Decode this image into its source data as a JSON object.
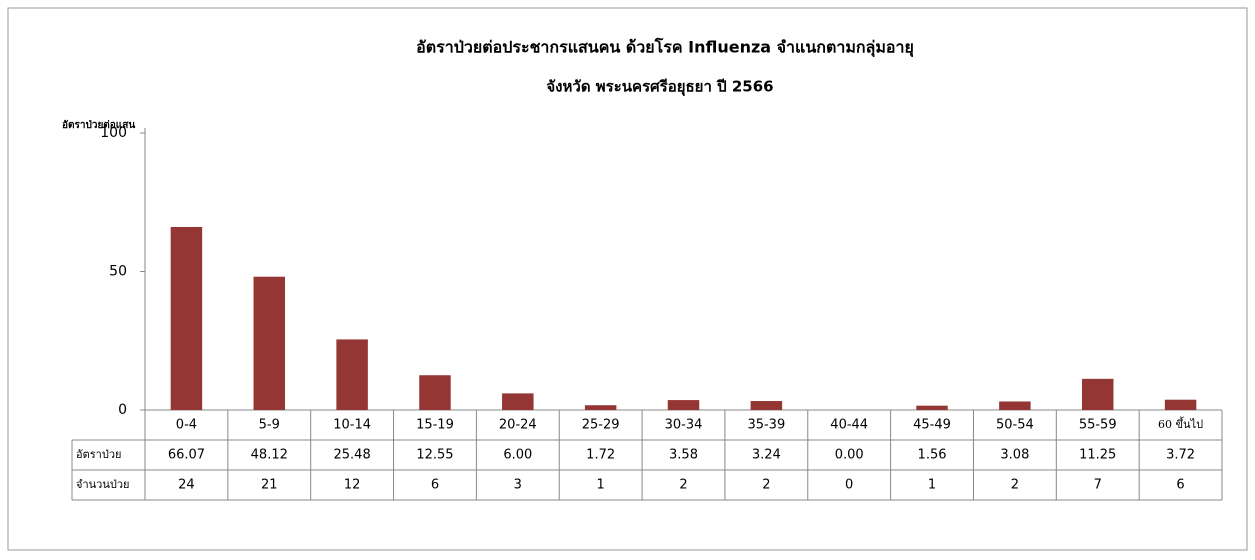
{
  "chart_data": {
    "type": "bar",
    "title": "อัตราป่วยต่อประชากรแสนคน ด้วยโรค Influenza จำแนกตามกลุ่มอายุ",
    "subtitle": "จังหวัด พระนครศรีอยุธยา ปี 2566",
    "y_label": "อัตราป่วยต่อแสน",
    "categories": [
      "0-4",
      "5-9",
      "10-14",
      "15-19",
      "20-24",
      "25-29",
      "30-34",
      "35-39",
      "40-44",
      "45-49",
      "50-54",
      "55-59",
      "60 ขึ้นไป"
    ],
    "series": [
      {
        "name": "อัตราป่วย",
        "color": "#943634",
        "values": [
          66.07,
          48.12,
          25.48,
          12.55,
          6.0,
          1.72,
          3.58,
          3.24,
          0.0,
          1.56,
          3.08,
          11.25,
          3.72
        ],
        "value_labels": [
          "66.07",
          "48.12",
          "25.48",
          "12.55",
          "6.00",
          "1.72",
          "3.58",
          "3.24",
          "0.00",
          "1.56",
          "3.08",
          "11.25",
          "3.72"
        ]
      }
    ],
    "counts_name": "จำนวนป่วย",
    "counts": [
      24,
      21,
      12,
      6,
      3,
      1,
      2,
      2,
      0,
      1,
      2,
      7,
      6
    ],
    "ylim": [
      0,
      100
    ],
    "yticks": [
      0,
      50,
      100
    ],
    "grid": false
  }
}
